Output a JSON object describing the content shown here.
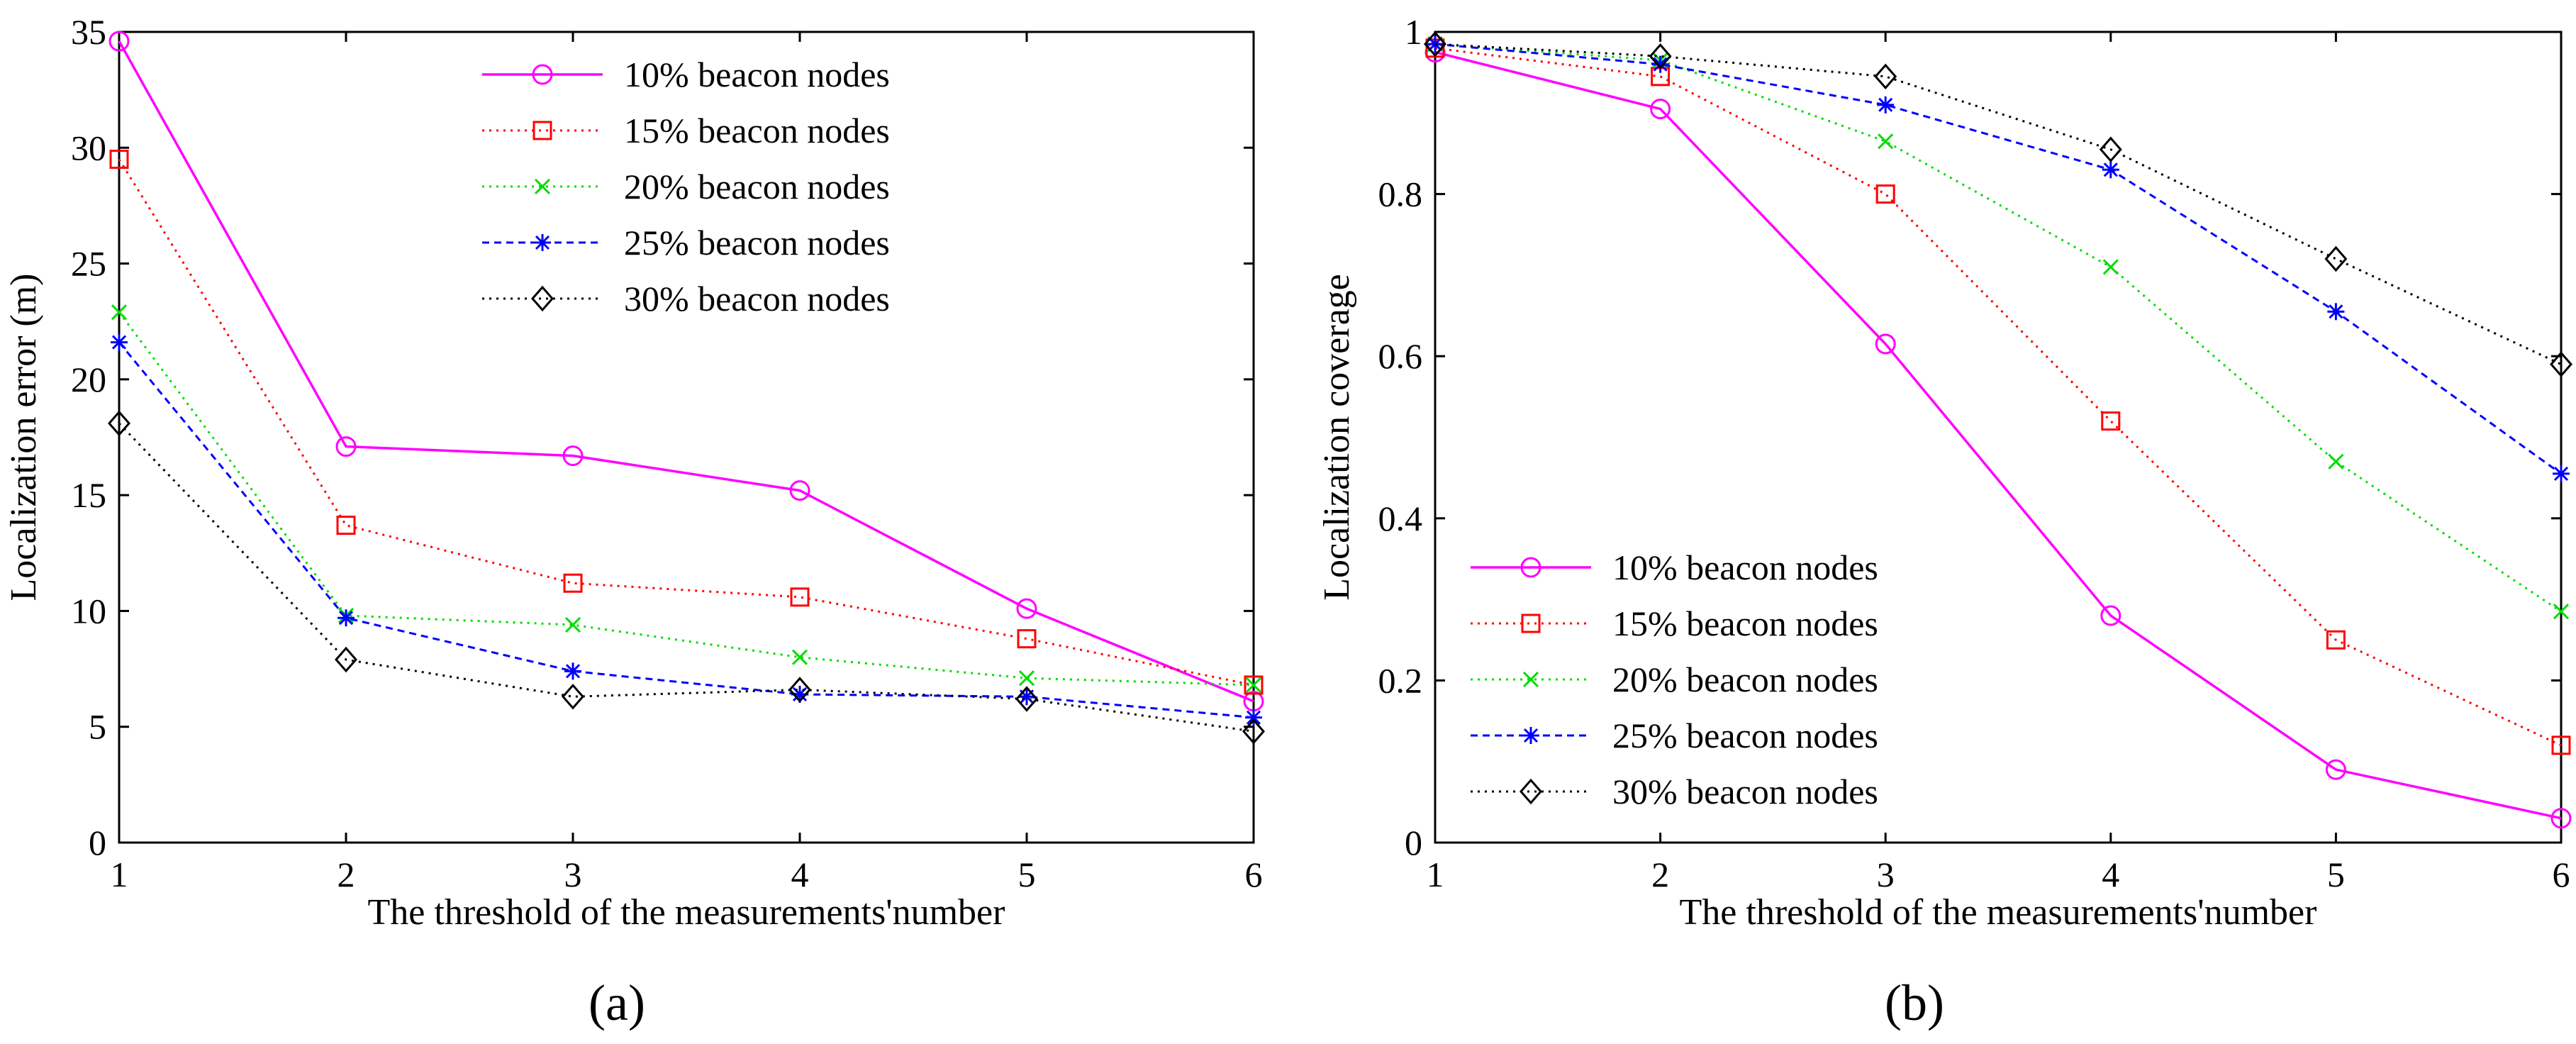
{
  "chart_data": [
    {
      "type": "line",
      "caption": "(a)",
      "xlabel": "The threshold of the measurements'number",
      "ylabel": "Localization error (m)",
      "x": [
        1,
        2,
        3,
        4,
        5,
        6
      ],
      "xlim": [
        1,
        6
      ],
      "ylim": [
        0,
        35
      ],
      "xticks": [
        "1",
        "2",
        "3",
        "4",
        "5",
        "6"
      ],
      "yticks": [
        "0",
        "5",
        "10",
        "15",
        "20",
        "25",
        "30",
        "35"
      ],
      "grid": false,
      "legend_position": "top-center",
      "series": [
        {
          "name": "10% beacon nodes",
          "color": "#ff00ff",
          "marker": "circle",
          "line": "solid",
          "values": [
            34.6,
            17.1,
            16.7,
            15.2,
            10.1,
            6.1
          ]
        },
        {
          "name": "15% beacon nodes",
          "color": "#ff0000",
          "marker": "square",
          "line": "dotted",
          "values": [
            29.5,
            13.7,
            11.2,
            10.6,
            8.8,
            6.8
          ]
        },
        {
          "name": "20% beacon nodes",
          "color": "#00dd00",
          "marker": "x",
          "line": "dotted",
          "values": [
            22.9,
            9.8,
            9.4,
            8.0,
            7.1,
            6.8
          ]
        },
        {
          "name": "25% beacon nodes",
          "color": "#0000ff",
          "marker": "asterisk",
          "line": "dashed",
          "values": [
            21.6,
            9.7,
            7.4,
            6.4,
            6.3,
            5.4
          ]
        },
        {
          "name": "30% beacon nodes",
          "color": "#000000",
          "marker": "diamond",
          "line": "dotted",
          "values": [
            18.1,
            7.9,
            6.3,
            6.6,
            6.2,
            4.8
          ]
        }
      ]
    },
    {
      "type": "line",
      "caption": "(b)",
      "xlabel": "The threshold of the measurements'number",
      "ylabel": "Localization coverage",
      "x": [
        1,
        2,
        3,
        4,
        5,
        6
      ],
      "xlim": [
        1,
        6
      ],
      "ylim": [
        0,
        1
      ],
      "xticks": [
        "1",
        "2",
        "3",
        "4",
        "5",
        "6"
      ],
      "yticks": [
        "0",
        "0.2",
        "0.4",
        "0.6",
        "0.8",
        "1"
      ],
      "grid": false,
      "legend_position": "bottom-left",
      "series": [
        {
          "name": "10% beacon nodes",
          "color": "#ff00ff",
          "marker": "circle",
          "line": "solid",
          "values": [
            0.975,
            0.905,
            0.615,
            0.28,
            0.09,
            0.03
          ]
        },
        {
          "name": "15% beacon nodes",
          "color": "#ff0000",
          "marker": "square",
          "line": "dotted",
          "values": [
            0.98,
            0.945,
            0.8,
            0.52,
            0.25,
            0.12
          ]
        },
        {
          "name": "20% beacon nodes",
          "color": "#00dd00",
          "marker": "x",
          "line": "dotted",
          "values": [
            0.985,
            0.965,
            0.865,
            0.71,
            0.47,
            0.285
          ]
        },
        {
          "name": "25% beacon nodes",
          "color": "#0000ff",
          "marker": "asterisk",
          "line": "dashed",
          "values": [
            0.985,
            0.96,
            0.91,
            0.83,
            0.655,
            0.455
          ]
        },
        {
          "name": "30% beacon nodes",
          "color": "#000000",
          "marker": "diamond",
          "line": "dotted",
          "values": [
            0.985,
            0.97,
            0.945,
            0.855,
            0.72,
            0.59
          ]
        }
      ]
    }
  ]
}
